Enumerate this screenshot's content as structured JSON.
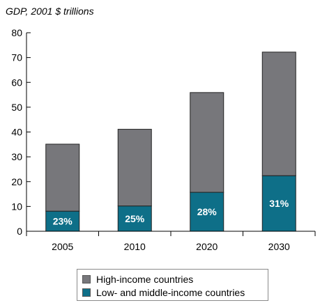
{
  "chart_data": {
    "type": "bar",
    "stacked": true,
    "title": "GDP, 2001 $ trillions",
    "xlabel": "",
    "ylabel": "",
    "categories": [
      "2005",
      "2010",
      "2020",
      "2030"
    ],
    "ylim": [
      0,
      80
    ],
    "yticks": [
      0,
      10,
      20,
      30,
      40,
      50,
      60,
      70,
      80
    ],
    "series": [
      {
        "name": "Low- and middle-income countries",
        "color": "#0e6f88",
        "values": [
          8.1,
          10.2,
          15.7,
          22.4
        ]
      },
      {
        "name": "High-income countries",
        "color": "#77777b",
        "values": [
          27.0,
          30.9,
          40.2,
          49.8
        ]
      }
    ],
    "share_labels": [
      "23%",
      "25%",
      "28%",
      "31%"
    ],
    "grid": false,
    "legend_position": "bottom"
  },
  "legend": {
    "items": [
      {
        "label": "High-income countries",
        "color": "#77777b"
      },
      {
        "label": "Low- and middle-income countries",
        "color": "#0e6f88"
      }
    ]
  }
}
